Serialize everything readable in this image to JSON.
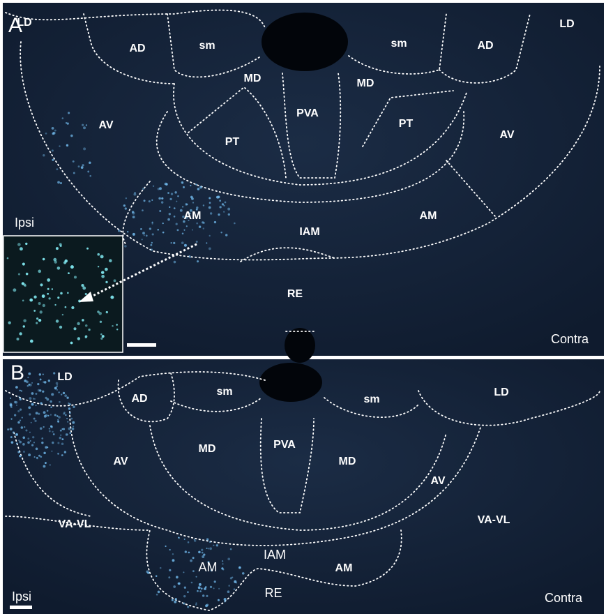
{
  "panels": [
    {
      "letter": "A",
      "labels": [
        "LD",
        "AD",
        "sm",
        "sm",
        "AD",
        "LD",
        "MD",
        "MD",
        "PVA",
        "AV",
        "PT",
        "PT",
        "AV",
        "Ipsi",
        "AM",
        "IAM",
        "AM",
        "RE",
        "Contra"
      ]
    },
    {
      "letter": "B",
      "labels": [
        "LD",
        "AD",
        "sm",
        "sm",
        "LD",
        "MD",
        "PVA",
        "MD",
        "AV",
        "AV",
        "VA-VL",
        "VA-VL",
        "IAM",
        "AM",
        "AM",
        "RE",
        "Ipsi",
        "Contra"
      ]
    }
  ]
}
